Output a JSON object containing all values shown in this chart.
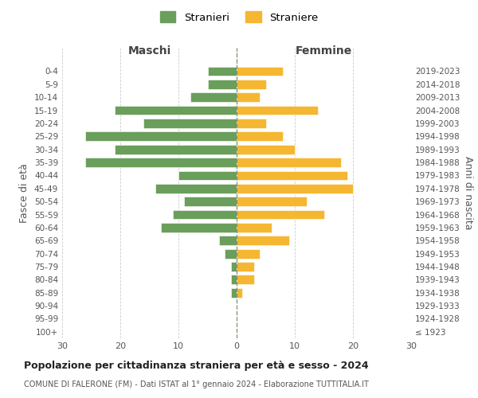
{
  "age_groups": [
    "100+",
    "95-99",
    "90-94",
    "85-89",
    "80-84",
    "75-79",
    "70-74",
    "65-69",
    "60-64",
    "55-59",
    "50-54",
    "45-49",
    "40-44",
    "35-39",
    "30-34",
    "25-29",
    "20-24",
    "15-19",
    "10-14",
    "5-9",
    "0-4"
  ],
  "birth_years": [
    "≤ 1923",
    "1924-1928",
    "1929-1933",
    "1934-1938",
    "1939-1943",
    "1944-1948",
    "1949-1953",
    "1954-1958",
    "1959-1963",
    "1964-1968",
    "1969-1973",
    "1974-1978",
    "1979-1983",
    "1984-1988",
    "1989-1993",
    "1994-1998",
    "1999-2003",
    "2004-2008",
    "2009-2013",
    "2014-2018",
    "2019-2023"
  ],
  "males": [
    0,
    0,
    0,
    1,
    1,
    1,
    2,
    3,
    13,
    11,
    9,
    14,
    10,
    26,
    21,
    26,
    16,
    21,
    8,
    5,
    5
  ],
  "females": [
    0,
    0,
    0,
    1,
    3,
    3,
    4,
    9,
    6,
    15,
    12,
    20,
    19,
    18,
    10,
    8,
    5,
    14,
    4,
    5,
    8
  ],
  "male_color": "#6a9e5b",
  "female_color": "#f5b731",
  "background_color": "#ffffff",
  "grid_color": "#cccccc",
  "center_line_color": "#888866",
  "xlim": 30,
  "title": "Popolazione per cittadinanza straniera per età e sesso - 2024",
  "subtitle": "COMUNE DI FALERONE (FM) - Dati ISTAT al 1° gennaio 2024 - Elaborazione TUTTITALIA.IT",
  "xlabel_left": "Maschi",
  "xlabel_right": "Femmine",
  "ylabel_left": "Fasce di età",
  "ylabel_right": "Anni di nascita",
  "legend_male": "Stranieri",
  "legend_female": "Straniere"
}
